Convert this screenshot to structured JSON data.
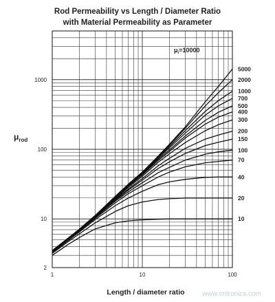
{
  "chart_data": {
    "type": "line",
    "title": "Rod Permeability vs Length / Diameter Ratio",
    "subtitle": "with Material Permeability as Parameter",
    "xlabel": "Length / diameter ratio",
    "ylabel_main": "μ",
    "ylabel_sub": "rod",
    "annotation_main": "μ",
    "annotation_sub": "i",
    "annotation_value": "=10000",
    "watermark": "www.cntronics.com",
    "x_scale": "log",
    "y_scale": "log",
    "xlim": [
      1,
      100
    ],
    "ylim": [
      2,
      5000
    ],
    "grid": true,
    "x_ticks": [
      {
        "value": 1,
        "label": "1"
      },
      {
        "value": 10,
        "label": "10"
      },
      {
        "value": 100,
        "label": "100"
      }
    ],
    "y_ticks": [
      {
        "value": 2,
        "label": "2"
      },
      {
        "value": 10,
        "label": "10"
      },
      {
        "value": 100,
        "label": "100"
      },
      {
        "value": 1000,
        "label": "1000"
      }
    ],
    "x": [
      1,
      1.5,
      2,
      3,
      5,
      7,
      10,
      15,
      20,
      30,
      50,
      70,
      100
    ],
    "series": [
      {
        "name": "5000",
        "values": [
          3.5,
          5.3,
          7.1,
          11.2,
          21,
          31.5,
          47,
          80,
          118,
          210,
          480,
          800,
          1420
        ]
      },
      {
        "name": "2000",
        "values": [
          3.5,
          5.3,
          7.1,
          11.2,
          21,
          31.5,
          47,
          79,
          115,
          200,
          420,
          650,
          1000
        ]
      },
      {
        "name": "1000",
        "values": [
          3.5,
          5.3,
          7.1,
          11.2,
          21,
          31.5,
          46,
          77,
          110,
          185,
          350,
          500,
          680
        ]
      },
      {
        "name": "700",
        "values": [
          3.5,
          5.3,
          7.1,
          11.2,
          20.5,
          31,
          45,
          75,
          105,
          170,
          310,
          420,
          540
        ]
      },
      {
        "name": "500",
        "values": [
          3.5,
          5.3,
          7.0,
          11.0,
          20,
          30,
          44,
          72,
          98,
          155,
          260,
          340,
          420
        ]
      },
      {
        "name": "400",
        "values": [
          3.5,
          5.3,
          7.0,
          11.0,
          20,
          29.5,
          43,
          69,
          93,
          145,
          230,
          290,
          345
        ]
      },
      {
        "name": "300",
        "values": [
          3.5,
          5.3,
          7.0,
          11.0,
          19.5,
          28.5,
          41,
          65,
          86,
          125,
          185,
          225,
          265
        ]
      },
      {
        "name": "200",
        "values": [
          3.5,
          5.2,
          6.9,
          10.8,
          19,
          27,
          38,
          58,
          74,
          103,
          140,
          160,
          182
        ]
      },
      {
        "name": "150",
        "values": [
          3.5,
          5.2,
          6.9,
          10.7,
          18.5,
          26,
          36,
          53,
          66,
          87,
          113,
          126,
          140
        ]
      },
      {
        "name": "100",
        "values": [
          3.4,
          5.1,
          6.8,
          10.5,
          18,
          24.5,
          33,
          46,
          55,
          70,
          85,
          92,
          97
        ]
      },
      {
        "name": "70",
        "values": [
          3.4,
          5.1,
          6.7,
          10.2,
          17,
          23,
          30,
          40,
          47,
          56,
          64,
          67,
          70
        ]
      },
      {
        "name": "40",
        "values": [
          3.3,
          4.9,
          6.5,
          9.8,
          15.5,
          20,
          25,
          31,
          34,
          37,
          39.5,
          40,
          40
        ]
      },
      {
        "name": "20",
        "values": [
          3.2,
          4.7,
          6.1,
          8.8,
          12.8,
          15.5,
          17.5,
          19,
          19.5,
          20,
          20,
          20,
          20
        ]
      },
      {
        "name": "10",
        "values": [
          3.0,
          4.3,
          5.4,
          7.2,
          8.8,
          9.4,
          9.7,
          9.9,
          10,
          10,
          10,
          10,
          10
        ]
      }
    ]
  }
}
